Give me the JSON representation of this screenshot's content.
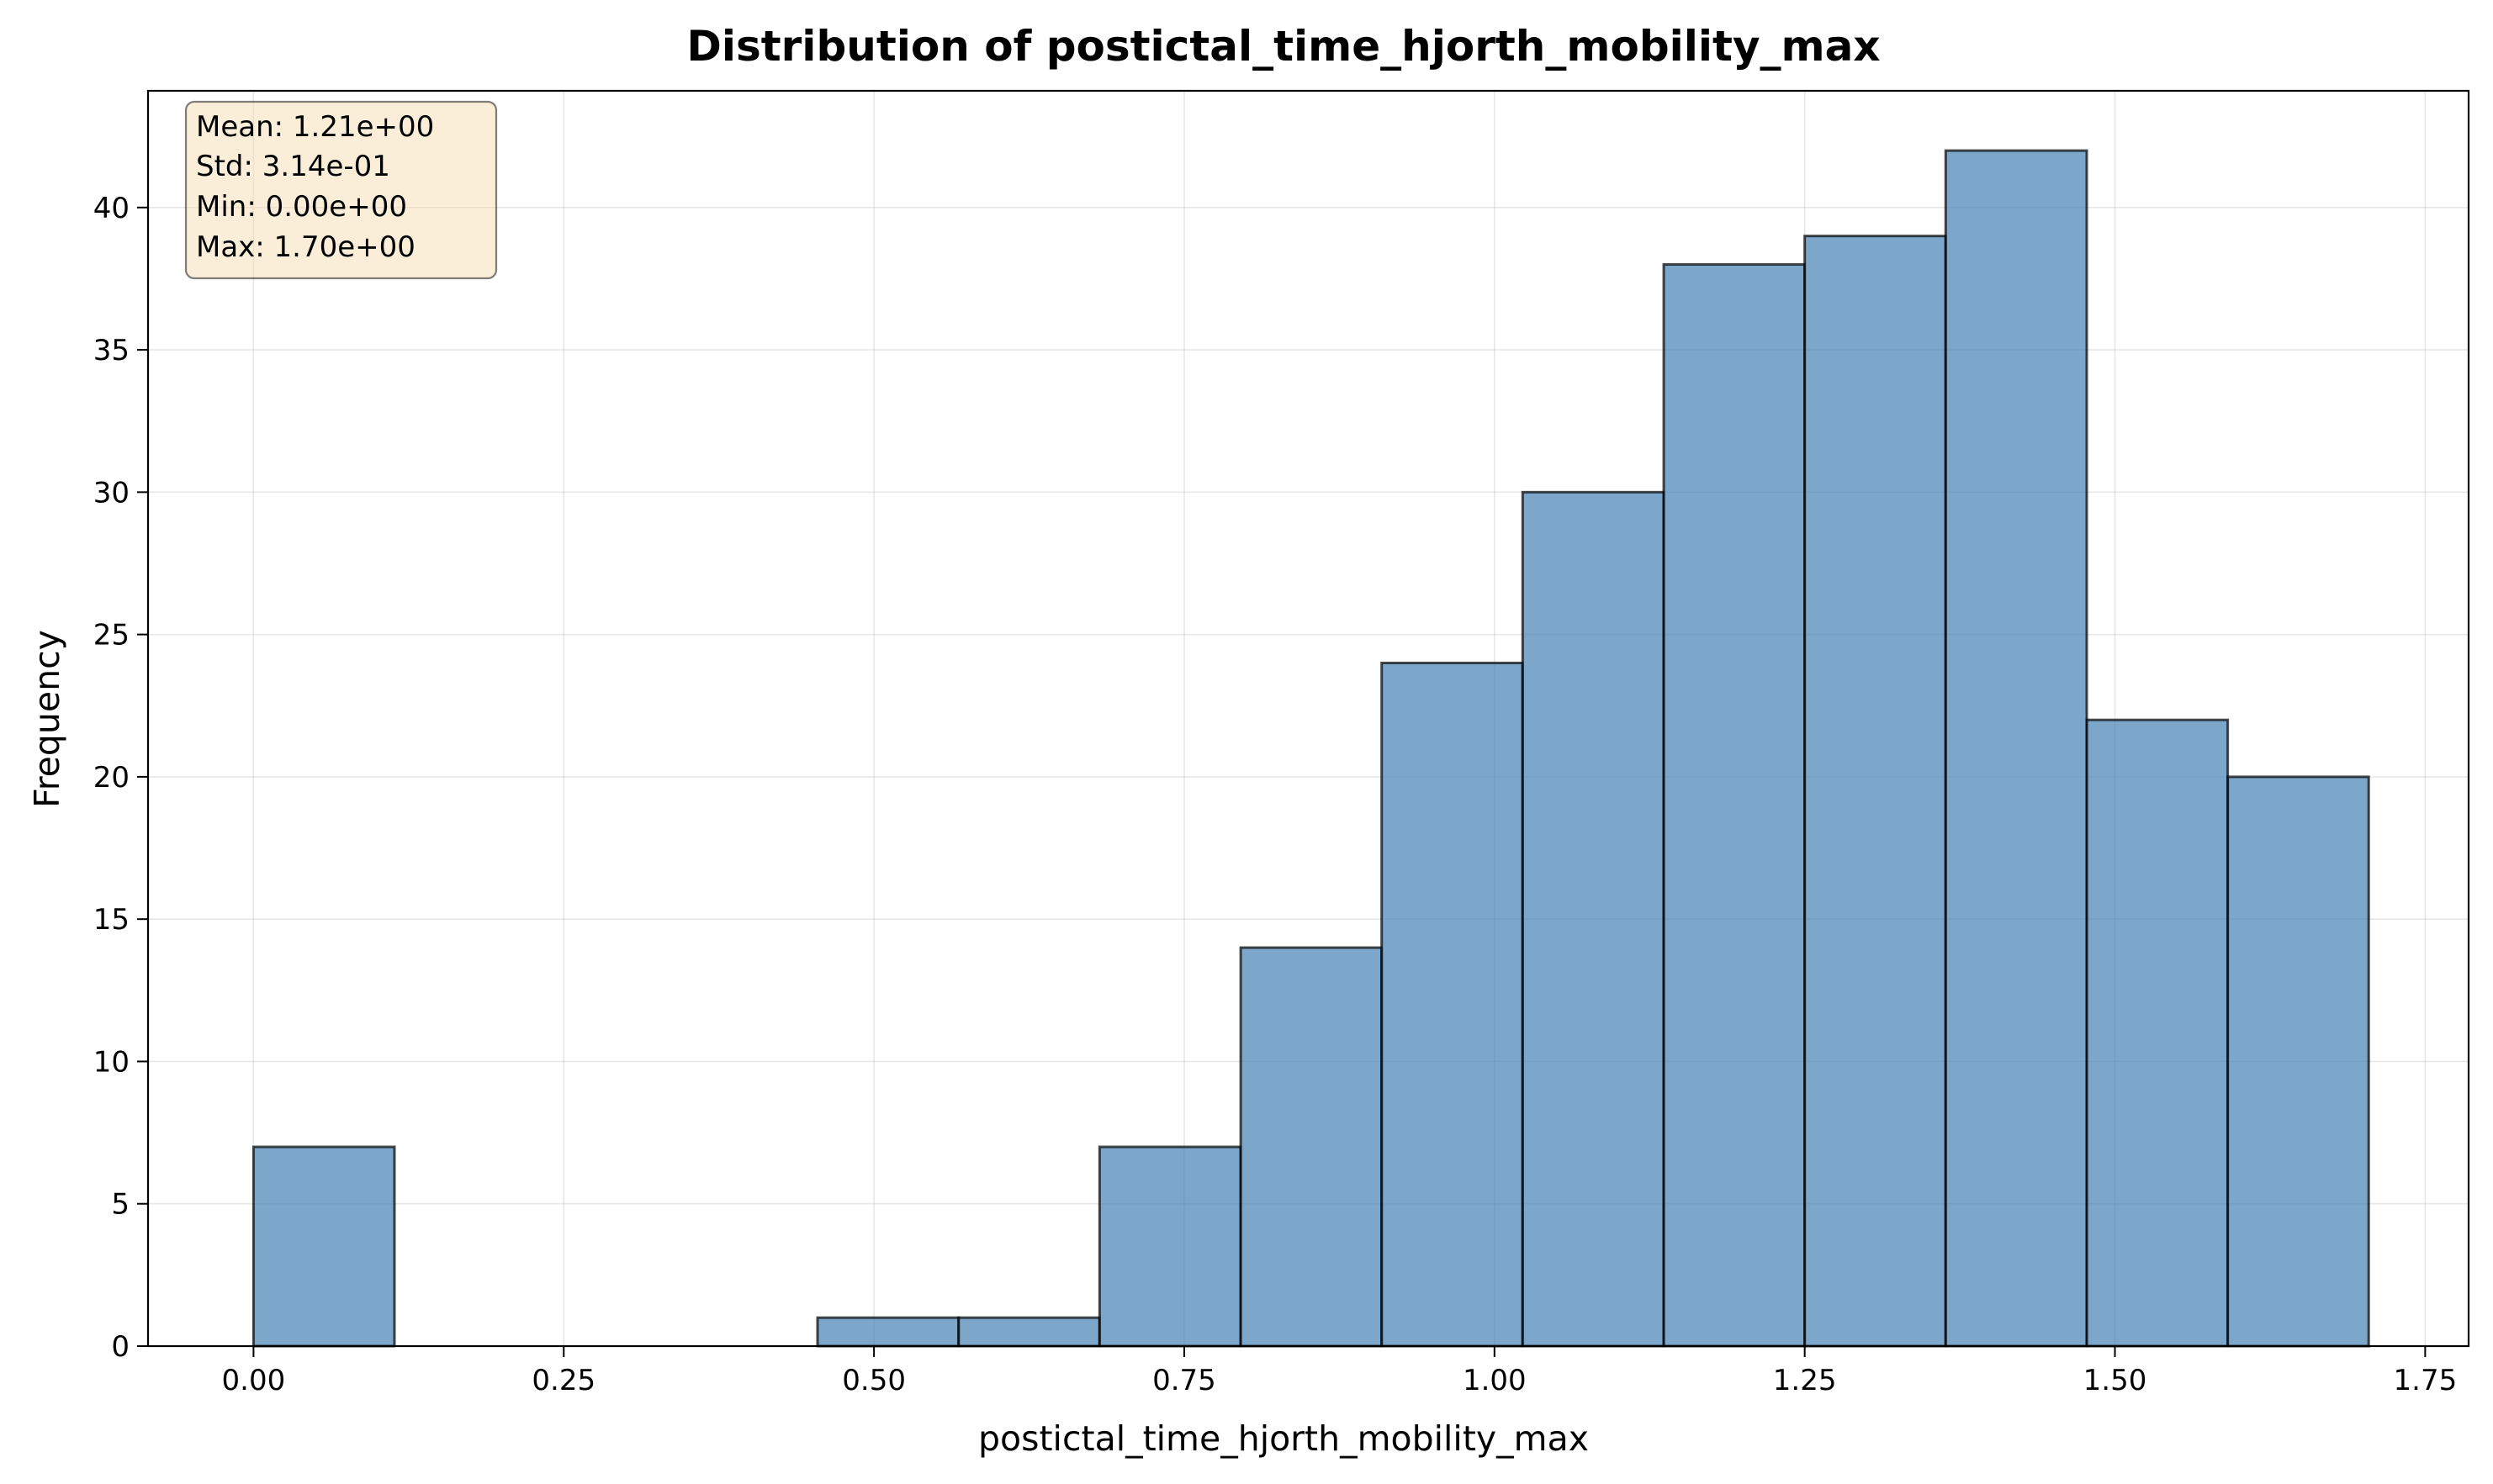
{
  "chart_data": {
    "type": "histogram",
    "title": "Distribution of postictal_time_hjorth_mobility_max",
    "xlabel": "postictal_time_hjorth_mobility_max",
    "ylabel": "Frequency",
    "xlim": [
      -0.085,
      1.785
    ],
    "ylim": [
      0,
      44.1
    ],
    "xticks": [
      0.0,
      0.25,
      0.5,
      0.75,
      1.0,
      1.25,
      1.5,
      1.75
    ],
    "xtick_labels": [
      "0.00",
      "0.25",
      "0.50",
      "0.75",
      "1.00",
      "1.25",
      "1.50",
      "1.75"
    ],
    "yticks": [
      0,
      5,
      10,
      15,
      20,
      25,
      30,
      35,
      40
    ],
    "ytick_labels": [
      "0",
      "5",
      "10",
      "15",
      "20",
      "25",
      "30",
      "35",
      "40"
    ],
    "bin_edges": [
      0.0,
      0.1136,
      0.2273,
      0.3409,
      0.4545,
      0.5682,
      0.6818,
      0.7955,
      0.9091,
      1.0227,
      1.1364,
      1.25,
      1.3636,
      1.4773,
      1.5909,
      1.7045
    ],
    "counts": [
      7,
      0,
      0,
      0,
      1,
      1,
      7,
      14,
      24,
      30,
      38,
      39,
      42,
      22,
      20
    ],
    "bar_color": "#4682b4",
    "bar_opacity": 0.7,
    "edge_color": "#000000",
    "grid": true,
    "stats_box": {
      "placement": "top-left",
      "lines": [
        "Mean: 1.21e+00",
        "Std: 3.14e-01",
        "Min: 0.00e+00",
        "Max: 1.70e+00"
      ],
      "facecolor": "#f5deb3",
      "edgecolor": "#000000"
    }
  }
}
